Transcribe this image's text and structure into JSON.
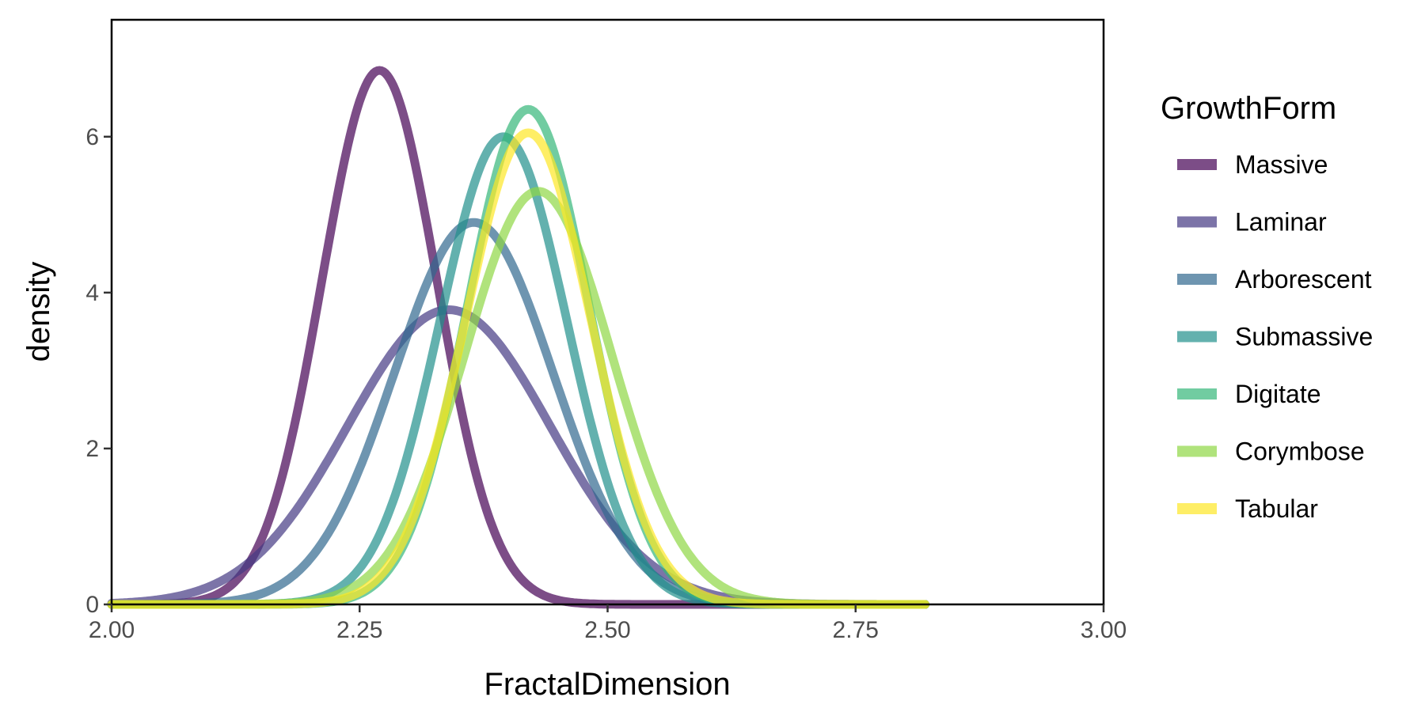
{
  "chart_data": {
    "type": "line",
    "subtype": "density",
    "xlabel": "FractalDimension",
    "ylabel": "density",
    "xlim": [
      2.0,
      3.0
    ],
    "ylim": [
      0,
      7.5
    ],
    "x_ticks": [
      2.0,
      2.25,
      2.5,
      2.75,
      3.0
    ],
    "x_tick_labels": [
      "2.00",
      "2.25",
      "2.50",
      "2.75",
      "3.00"
    ],
    "y_ticks": [
      0,
      2,
      4,
      6
    ],
    "y_tick_labels": [
      "0",
      "2",
      "4",
      "6"
    ],
    "grid": false,
    "legend": {
      "title": "GrowthForm",
      "position": "right"
    },
    "series": [
      {
        "name": "Massive",
        "color": "#440154",
        "peak_x": 2.27,
        "peak_y": 6.85,
        "sd": 0.058,
        "x_range": [
          2.0,
          2.82
        ]
      },
      {
        "name": "Laminar",
        "color": "#443983",
        "peak_x": 2.34,
        "peak_y": 3.78,
        "sd": 0.102,
        "x_range": [
          2.0,
          2.82
        ]
      },
      {
        "name": "Arborescent",
        "color": "#31688E",
        "peak_x": 2.365,
        "peak_y": 4.9,
        "sd": 0.08,
        "x_range": [
          2.0,
          2.82
        ]
      },
      {
        "name": "Submassive",
        "color": "#21908C",
        "peak_x": 2.395,
        "peak_y": 6.0,
        "sd": 0.064,
        "x_range": [
          2.0,
          2.82
        ]
      },
      {
        "name": "Digitate",
        "color": "#35B779",
        "peak_x": 2.42,
        "peak_y": 6.35,
        "sd": 0.061,
        "x_range": [
          2.0,
          2.82
        ]
      },
      {
        "name": "Corymbose",
        "color": "#8FD744",
        "peak_x": 2.43,
        "peak_y": 5.3,
        "sd": 0.074,
        "x_range": [
          2.0,
          2.82
        ]
      },
      {
        "name": "Tabular",
        "color": "#FDE725",
        "peak_x": 2.42,
        "peak_y": 6.05,
        "sd": 0.063,
        "x_range": [
          2.0,
          2.82
        ]
      }
    ]
  }
}
